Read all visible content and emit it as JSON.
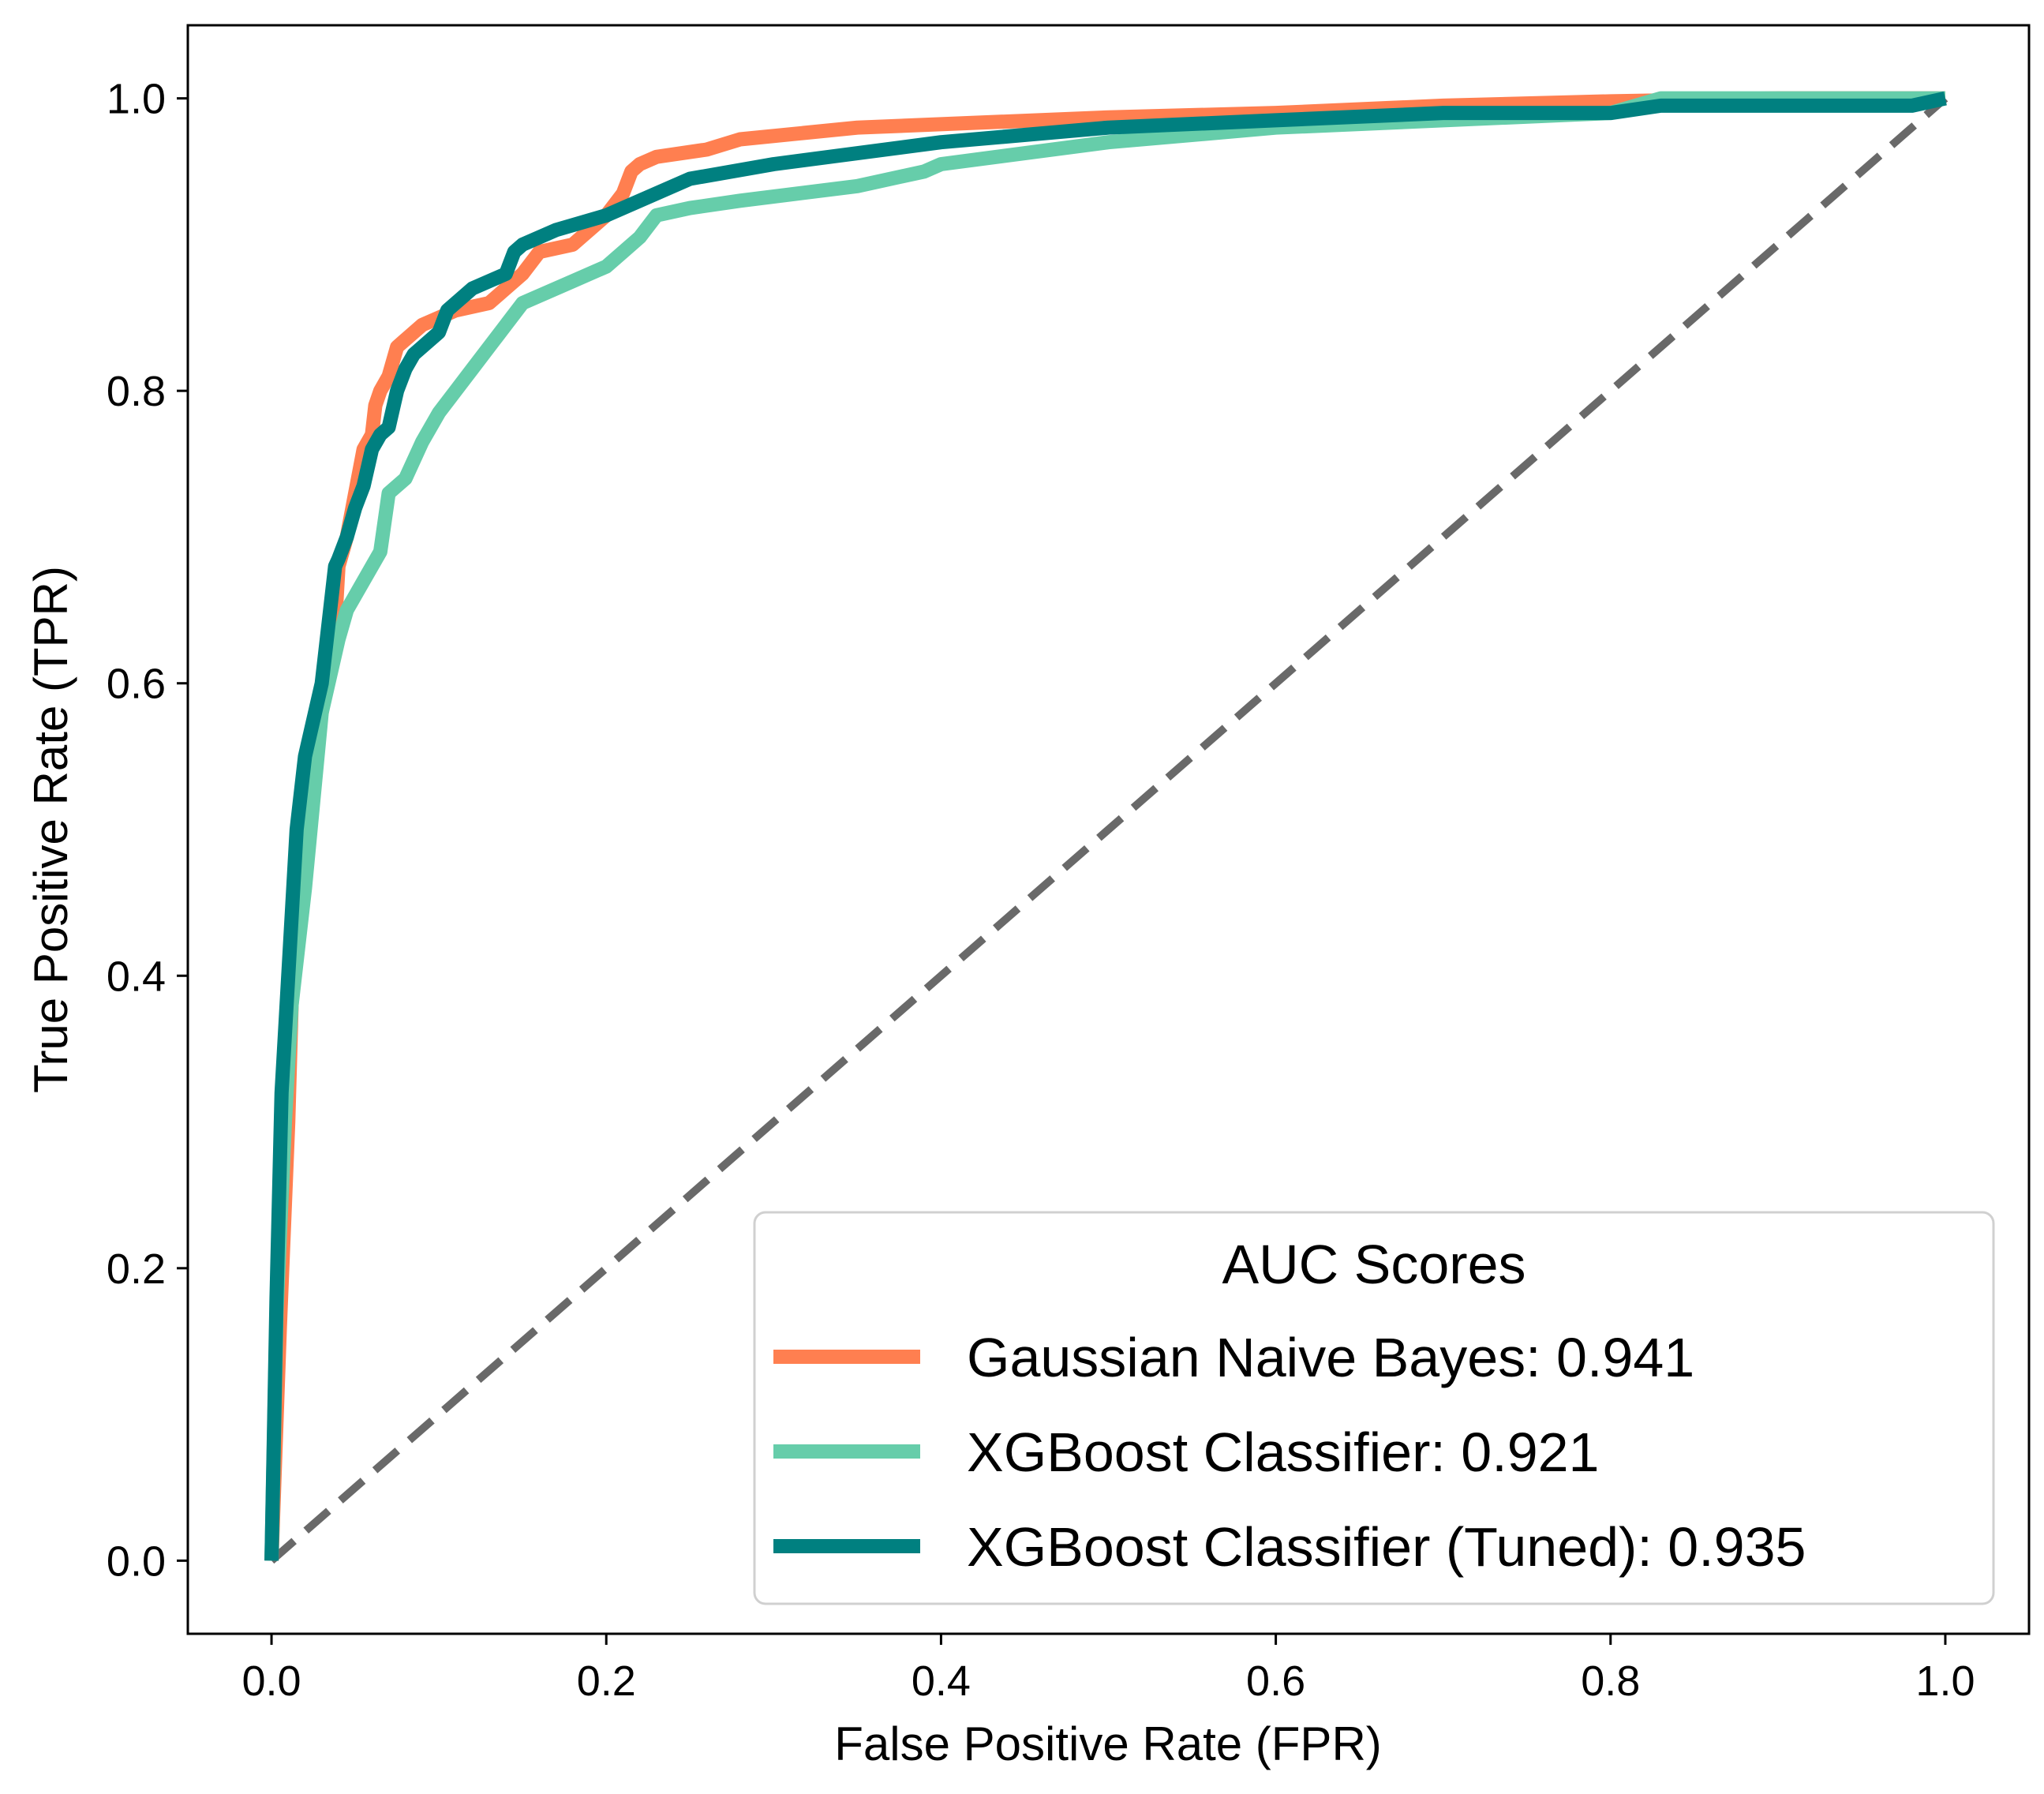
{
  "chart_data": {
    "type": "line",
    "title": "",
    "xlabel": "False Positive Rate (FPR)",
    "ylabel": "True Positive Rate (TPR)",
    "xlim": [
      -0.05,
      1.05
    ],
    "ylim": [
      -0.05,
      1.05
    ],
    "xticks": [
      "0.0",
      "0.2",
      "0.4",
      "0.6",
      "0.8",
      "1.0"
    ],
    "yticks": [
      "0.0",
      "0.2",
      "0.4",
      "0.6",
      "0.8",
      "1.0"
    ],
    "grid": false,
    "legend": {
      "title": "AUC Scores",
      "placement": "lower-right"
    },
    "series": [
      {
        "name": "Gaussian Naive Bayes: 0.941",
        "color": "#FF7F50",
        "x": [
          0.0,
          0.005,
          0.01,
          0.012,
          0.015,
          0.02,
          0.022,
          0.025,
          0.03,
          0.035,
          0.038,
          0.04,
          0.045,
          0.05,
          0.055,
          0.06,
          0.062,
          0.065,
          0.07,
          0.075,
          0.08,
          0.085,
          0.09,
          0.1,
          0.11,
          0.13,
          0.14,
          0.15,
          0.16,
          0.18,
          0.2,
          0.21,
          0.215,
          0.22,
          0.23,
          0.26,
          0.28,
          0.35,
          0.5,
          0.6,
          0.7,
          0.8,
          0.9,
          1.0
        ],
        "y": [
          0.0,
          0.16,
          0.3,
          0.38,
          0.45,
          0.5,
          0.52,
          0.56,
          0.58,
          0.62,
          0.64,
          0.68,
          0.7,
          0.73,
          0.76,
          0.77,
          0.79,
          0.8,
          0.81,
          0.83,
          0.835,
          0.84,
          0.845,
          0.85,
          0.855,
          0.86,
          0.87,
          0.88,
          0.895,
          0.9,
          0.92,
          0.935,
          0.95,
          0.955,
          0.96,
          0.965,
          0.972,
          0.98,
          0.987,
          0.99,
          0.995,
          0.998,
          1.0,
          1.0
        ]
      },
      {
        "name": "XGBoost Classifier: 0.921",
        "color": "#66CDAA",
        "x": [
          0.0,
          0.003,
          0.008,
          0.012,
          0.02,
          0.025,
          0.03,
          0.04,
          0.045,
          0.05,
          0.06,
          0.065,
          0.07,
          0.075,
          0.08,
          0.09,
          0.095,
          0.1,
          0.11,
          0.12,
          0.13,
          0.14,
          0.15,
          0.16,
          0.18,
          0.2,
          0.21,
          0.22,
          0.23,
          0.25,
          0.28,
          0.35,
          0.39,
          0.4,
          0.5,
          0.6,
          0.7,
          0.8,
          0.83,
          0.9,
          1.0
        ],
        "y": [
          0.0,
          0.17,
          0.3,
          0.38,
          0.46,
          0.52,
          0.58,
          0.63,
          0.65,
          0.66,
          0.68,
          0.69,
          0.73,
          0.735,
          0.74,
          0.765,
          0.775,
          0.785,
          0.8,
          0.815,
          0.83,
          0.845,
          0.86,
          0.865,
          0.875,
          0.885,
          0.895,
          0.905,
          0.92,
          0.925,
          0.93,
          0.94,
          0.95,
          0.955,
          0.97,
          0.98,
          0.985,
          0.99,
          1.0,
          1.0,
          1.0
        ]
      },
      {
        "name": "XGBoost Classifier (Tuned): 0.935",
        "color": "#008080",
        "x": [
          0.0,
          0.003,
          0.006,
          0.01,
          0.015,
          0.02,
          0.03,
          0.035,
          0.038,
          0.04,
          0.045,
          0.05,
          0.055,
          0.06,
          0.065,
          0.07,
          0.075,
          0.08,
          0.085,
          0.09,
          0.1,
          0.105,
          0.11,
          0.12,
          0.13,
          0.14,
          0.145,
          0.15,
          0.17,
          0.2,
          0.25,
          0.3,
          0.4,
          0.5,
          0.6,
          0.7,
          0.8,
          0.83,
          0.9,
          0.98,
          1.0
        ],
        "y": [
          0.0,
          0.18,
          0.32,
          0.4,
          0.5,
          0.55,
          0.6,
          0.65,
          0.68,
          0.685,
          0.7,
          0.72,
          0.735,
          0.76,
          0.77,
          0.775,
          0.8,
          0.815,
          0.825,
          0.83,
          0.84,
          0.855,
          0.86,
          0.87,
          0.875,
          0.88,
          0.895,
          0.9,
          0.91,
          0.92,
          0.945,
          0.955,
          0.97,
          0.98,
          0.985,
          0.99,
          0.99,
          0.995,
          0.995,
          0.995,
          1.0
        ]
      }
    ],
    "reference_line": {
      "x": [
        0.0,
        1.0
      ],
      "y": [
        0.0,
        1.0
      ],
      "color": "#696969",
      "style": "dashed"
    }
  }
}
